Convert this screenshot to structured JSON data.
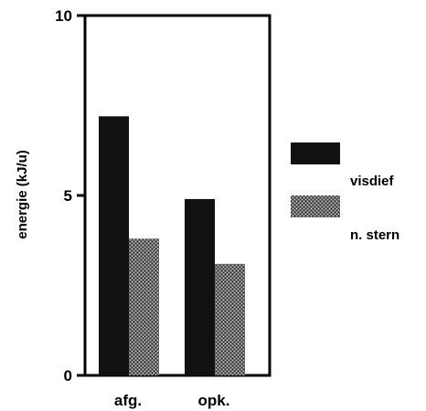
{
  "chart_data": {
    "type": "bar",
    "categories": [
      "afg.",
      "opk."
    ],
    "series": [
      {
        "name": "visdief",
        "values": [
          7.2,
          4.9
        ],
        "color": "#111111",
        "pattern": "solid"
      },
      {
        "name": "n. stern",
        "values": [
          3.8,
          3.1
        ],
        "color": "#555555",
        "pattern": "stipple"
      }
    ],
    "ylabel": "energie (kJ/u)",
    "ylim": [
      0,
      10
    ],
    "yticks": [
      0,
      5,
      10
    ],
    "grid": false,
    "legend_position": "right"
  }
}
